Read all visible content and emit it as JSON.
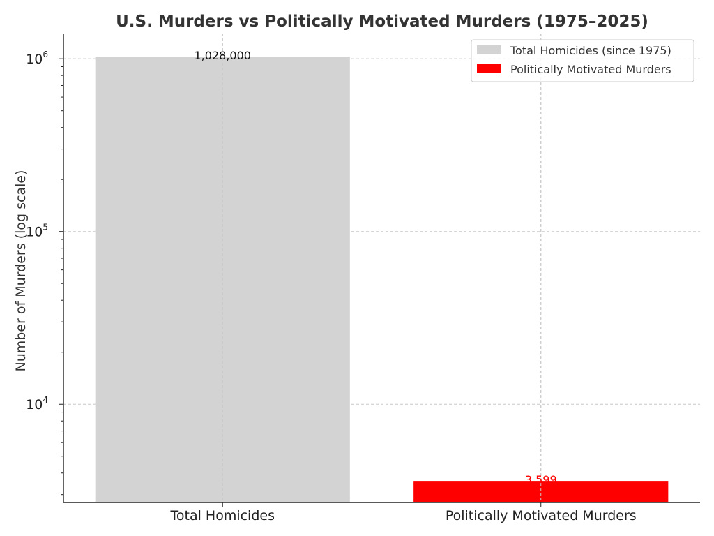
{
  "chart_data": {
    "type": "bar",
    "title": "U.S. Murders vs Politically Motivated Murders (1975–2025)",
    "xlabel": "",
    "ylabel": "Number of Murders (log scale)",
    "yscale": "log",
    "ylim": [
      2700,
      1400000
    ],
    "yticks": [
      {
        "base": "10",
        "exp": "4",
        "value": 10000
      },
      {
        "base": "10",
        "exp": "5",
        "value": 100000
      },
      {
        "base": "10",
        "exp": "6",
        "value": 1000000
      }
    ],
    "categories": [
      "Total Homicides",
      "Politically Motivated Murders"
    ],
    "values": [
      1028000,
      3599
    ],
    "value_labels": [
      "1,028,000",
      "3,599"
    ],
    "colors": [
      "#d3d3d3",
      "#ff0000"
    ],
    "label_colors": [
      "#111111",
      "#ff0000"
    ],
    "legend": {
      "placement": "top-right",
      "entries": [
        "Total Homicides (since 1975)",
        "Politically Motivated Murders"
      ]
    },
    "grid": true
  }
}
